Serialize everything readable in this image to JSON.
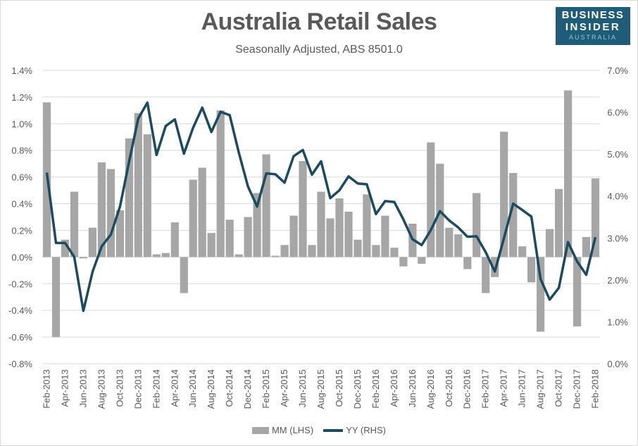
{
  "header": {
    "title": "Australia Retail Sales",
    "subtitle": "Seasonally Adjusted, ABS 8501.0"
  },
  "logo": {
    "line1": "BUSINESS",
    "line2": "INSIDER",
    "line3": "AUSTRALIA",
    "bg_color": "#1f5c78"
  },
  "legend": {
    "mm_label": "MM (LHS)",
    "yy_label": "YY (RHS)"
  },
  "colors": {
    "bar": "#a6a6a6",
    "line": "#1c4a5e",
    "grid": "#d9d9d9",
    "text": "#595959"
  },
  "chart_data": {
    "type": "bar+line",
    "title": "Australia Retail Sales",
    "subtitle": "Seasonally Adjusted, ABS 8501.0",
    "xlabel": "",
    "ylabel_left": "",
    "ylabel_right": "",
    "ylim_left": [
      -0.8,
      1.4
    ],
    "ylim_right": [
      0.0,
      7.0
    ],
    "yticks_left": [
      "1.4%",
      "1.2%",
      "1.0%",
      "0.8%",
      "0.6%",
      "0.4%",
      "0.2%",
      "0.0%",
      "-0.2%",
      "-0.4%",
      "-0.6%",
      "-0.8%"
    ],
    "yticks_right": [
      "7.0%",
      "6.0%",
      "5.0%",
      "4.0%",
      "3.0%",
      "2.0%",
      "1.0%",
      "0.0%"
    ],
    "grid": true,
    "legend_position": "bottom",
    "x_tick_labels": [
      "Feb-2013",
      "Apr-2013",
      "Jun-2013",
      "Aug-2013",
      "Oct-2013",
      "Dec-2013",
      "Feb-2014",
      "Apr-2014",
      "Jun-2014",
      "Aug-2014",
      "Oct-2014",
      "Dec-2014",
      "Feb-2015",
      "Apr-2015",
      "Jun-2015",
      "Aug-2015",
      "Oct-2015",
      "Dec-2015",
      "Feb-2016",
      "Apr-2016",
      "Jun-2016",
      "Aug-2016",
      "Oct-2016",
      "Dec-2016",
      "Feb-2017",
      "Apr-2017",
      "Jun-2017",
      "Aug-2017",
      "Oct-2017",
      "Dec-2017",
      "Feb-2018"
    ],
    "categories": [
      "Feb-2013",
      "Mar-2013",
      "Apr-2013",
      "May-2013",
      "Jun-2013",
      "Jul-2013",
      "Aug-2013",
      "Sep-2013",
      "Oct-2013",
      "Nov-2013",
      "Dec-2013",
      "Jan-2014",
      "Feb-2014",
      "Mar-2014",
      "Apr-2014",
      "May-2014",
      "Jun-2014",
      "Jul-2014",
      "Aug-2014",
      "Sep-2014",
      "Oct-2014",
      "Nov-2014",
      "Dec-2014",
      "Jan-2015",
      "Feb-2015",
      "Mar-2015",
      "Apr-2015",
      "May-2015",
      "Jun-2015",
      "Jul-2015",
      "Aug-2015",
      "Sep-2015",
      "Oct-2015",
      "Nov-2015",
      "Dec-2015",
      "Jan-2016",
      "Feb-2016",
      "Mar-2016",
      "Apr-2016",
      "May-2016",
      "Jun-2016",
      "Jul-2016",
      "Aug-2016",
      "Sep-2016",
      "Oct-2016",
      "Nov-2016",
      "Dec-2016",
      "Jan-2017",
      "Feb-2017",
      "Mar-2017",
      "Apr-2017",
      "May-2017",
      "Jun-2017",
      "Jul-2017",
      "Aug-2017",
      "Sep-2017",
      "Oct-2017",
      "Nov-2017",
      "Dec-2017",
      "Jan-2018",
      "Feb-2018"
    ],
    "series": [
      {
        "name": "MM (LHS)",
        "type": "bar",
        "axis": "left",
        "values": [
          1.16,
          -0.6,
          0.13,
          0.49,
          -0.01,
          0.22,
          0.71,
          0.66,
          0.35,
          0.89,
          1.08,
          0.92,
          0.02,
          0.03,
          0.26,
          -0.27,
          0.58,
          0.67,
          0.18,
          1.1,
          0.28,
          0.02,
          0.3,
          0.48,
          0.77,
          0.01,
          0.09,
          0.31,
          0.72,
          0.09,
          0.49,
          0.29,
          0.44,
          0.34,
          0.13,
          0.47,
          0.09,
          0.31,
          0.07,
          -0.07,
          0.25,
          -0.05,
          0.86,
          0.7,
          0.22,
          0.17,
          -0.09,
          0.48,
          -0.27,
          -0.15,
          0.94,
          0.63,
          0.08,
          -0.19,
          -0.56,
          0.21,
          0.51,
          1.25,
          -0.52,
          0.15,
          0.59
        ]
      },
      {
        "name": "YY (RHS)",
        "type": "line",
        "axis": "right",
        "values": [
          4.56,
          2.88,
          2.88,
          2.55,
          1.26,
          2.19,
          2.8,
          3.08,
          3.75,
          4.82,
          5.85,
          6.23,
          4.98,
          5.67,
          5.83,
          5.01,
          5.63,
          6.11,
          5.53,
          6.01,
          5.93,
          5.04,
          4.23,
          3.75,
          4.54,
          4.52,
          4.32,
          4.95,
          5.1,
          4.51,
          4.83,
          3.95,
          4.14,
          4.47,
          4.3,
          4.28,
          3.57,
          3.88,
          3.86,
          3.44,
          2.97,
          2.83,
          3.19,
          3.64,
          3.42,
          3.25,
          3.03,
          3.04,
          2.66,
          2.2,
          3.0,
          3.82,
          3.67,
          3.51,
          2.02,
          1.53,
          1.81,
          2.9,
          2.44,
          2.12,
          3.02
        ]
      }
    ]
  }
}
